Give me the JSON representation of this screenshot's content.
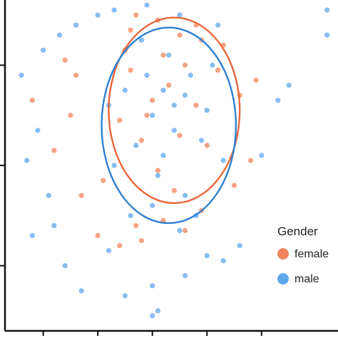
{
  "chart_data": {
    "type": "scatter",
    "title": "",
    "xlabel": "",
    "ylabel": "",
    "xlim": [
      -2.7,
      3.4
    ],
    "ylim": [
      -4.3,
      2.3
    ],
    "x_ticks": [
      -2,
      -1,
      0,
      1,
      2
    ],
    "y_ticks": [
      -3,
      -1,
      1
    ],
    "grid": false,
    "legend": {
      "title": "Gender",
      "placement": "bottom-right",
      "entries": [
        {
          "label": "female",
          "color": "#f0845c"
        },
        {
          "label": "male",
          "color": "#5ea7ee"
        }
      ]
    },
    "series": [
      {
        "name": "female",
        "color": "#e8663a",
        "marker_color": "#f0845c",
        "ellipse": {
          "cx": 0.4,
          "cy": 0.1,
          "rx": 1.2,
          "ry": 1.85
        },
        "points": [
          [
            -1.5,
            0.0
          ],
          [
            -1.4,
            0.8
          ],
          [
            -1.6,
            1.1
          ],
          [
            -0.5,
            1.3
          ],
          [
            -0.4,
            1.7
          ],
          [
            -0.3,
            2.0
          ],
          [
            0.1,
            1.9
          ],
          [
            0.5,
            1.6
          ],
          [
            0.8,
            1.8
          ],
          [
            0.9,
            1.5
          ],
          [
            1.3,
            1.4
          ],
          [
            1.6,
            0.4
          ],
          [
            1.9,
            0.7
          ],
          [
            1.8,
            -0.9
          ],
          [
            1.5,
            -1.4
          ],
          [
            0.9,
            -1.9
          ],
          [
            0.6,
            -2.3
          ],
          [
            0.2,
            -2.1
          ],
          [
            -0.3,
            -2.2
          ],
          [
            -0.6,
            -2.6
          ],
          [
            -1.0,
            -2.4
          ],
          [
            -0.9,
            -1.3
          ],
          [
            -1.3,
            -1.6
          ],
          [
            -2.2,
            0.3
          ],
          [
            -1.8,
            -0.7
          ],
          [
            -0.2,
            -2.5
          ],
          [
            0.0,
            0.3
          ],
          [
            0.3,
            0.6
          ],
          [
            0.5,
            -0.4
          ],
          [
            0.8,
            0.2
          ],
          [
            -0.2,
            -0.5
          ],
          [
            0.1,
            -1.1
          ],
          [
            0.6,
            1.0
          ],
          [
            -0.4,
            0.9
          ],
          [
            1.0,
            -0.6
          ],
          [
            0.2,
            1.2
          ],
          [
            -0.6,
            -0.1
          ],
          [
            1.2,
            0.9
          ],
          [
            0.4,
            -1.5
          ],
          [
            -0.1,
            0.0
          ]
        ]
      },
      {
        "name": "male",
        "color": "#2f80d1",
        "marker_color": "#5ea7ee",
        "ellipse": {
          "cx": 0.3,
          "cy": -0.2,
          "rx": 1.23,
          "ry": 1.95
        },
        "points": [
          [
            -2.4,
            0.8
          ],
          [
            -2.1,
            -0.3
          ],
          [
            -2.3,
            -0.9
          ],
          [
            -1.9,
            -1.6
          ],
          [
            -2.0,
            1.3
          ],
          [
            -1.7,
            1.6
          ],
          [
            -1.4,
            1.8
          ],
          [
            -1.0,
            2.0
          ],
          [
            -0.7,
            2.1
          ],
          [
            -0.1,
            2.2
          ],
          [
            0.5,
            2.0
          ],
          [
            1.2,
            1.8
          ],
          [
            2.3,
            0.3
          ],
          [
            2.5,
            0.6
          ],
          [
            2.0,
            -0.8
          ],
          [
            1.6,
            -2.6
          ],
          [
            1.0,
            -2.8
          ],
          [
            0.6,
            -3.2
          ],
          [
            0.0,
            -3.4
          ],
          [
            -0.5,
            -3.6
          ],
          [
            -1.3,
            -3.5
          ],
          [
            -1.8,
            -2.2
          ],
          [
            -1.6,
            -3.0
          ],
          [
            -2.2,
            -2.4
          ],
          [
            0.0,
            -4.0
          ],
          [
            0.1,
            -3.9
          ],
          [
            3.2,
            2.1
          ],
          [
            3.2,
            1.6
          ],
          [
            -0.8,
            -2.7
          ],
          [
            1.3,
            -2.9
          ],
          [
            0.0,
            0.0
          ],
          [
            0.2,
            0.5
          ],
          [
            0.4,
            -0.3
          ],
          [
            0.7,
            0.8
          ],
          [
            -0.3,
            -0.6
          ],
          [
            0.1,
            -1.2
          ],
          [
            0.6,
            -1.6
          ],
          [
            -0.5,
            0.5
          ],
          [
            1.0,
            0.1
          ],
          [
            0.3,
            1.2
          ],
          [
            -0.7,
            -1.0
          ],
          [
            1.3,
            -0.9
          ],
          [
            0.8,
            -2.0
          ],
          [
            -0.2,
            1.5
          ],
          [
            0.5,
            -2.3
          ],
          [
            -0.8,
            0.2
          ],
          [
            1.1,
            1.0
          ],
          [
            0.0,
            -1.8
          ],
          [
            -0.4,
            -2.0
          ],
          [
            0.9,
            -0.5
          ],
          [
            -0.1,
            0.8
          ],
          [
            0.4,
            0.2
          ],
          [
            0.2,
            -0.8
          ],
          [
            0.6,
            0.4
          ]
        ]
      }
    ]
  }
}
